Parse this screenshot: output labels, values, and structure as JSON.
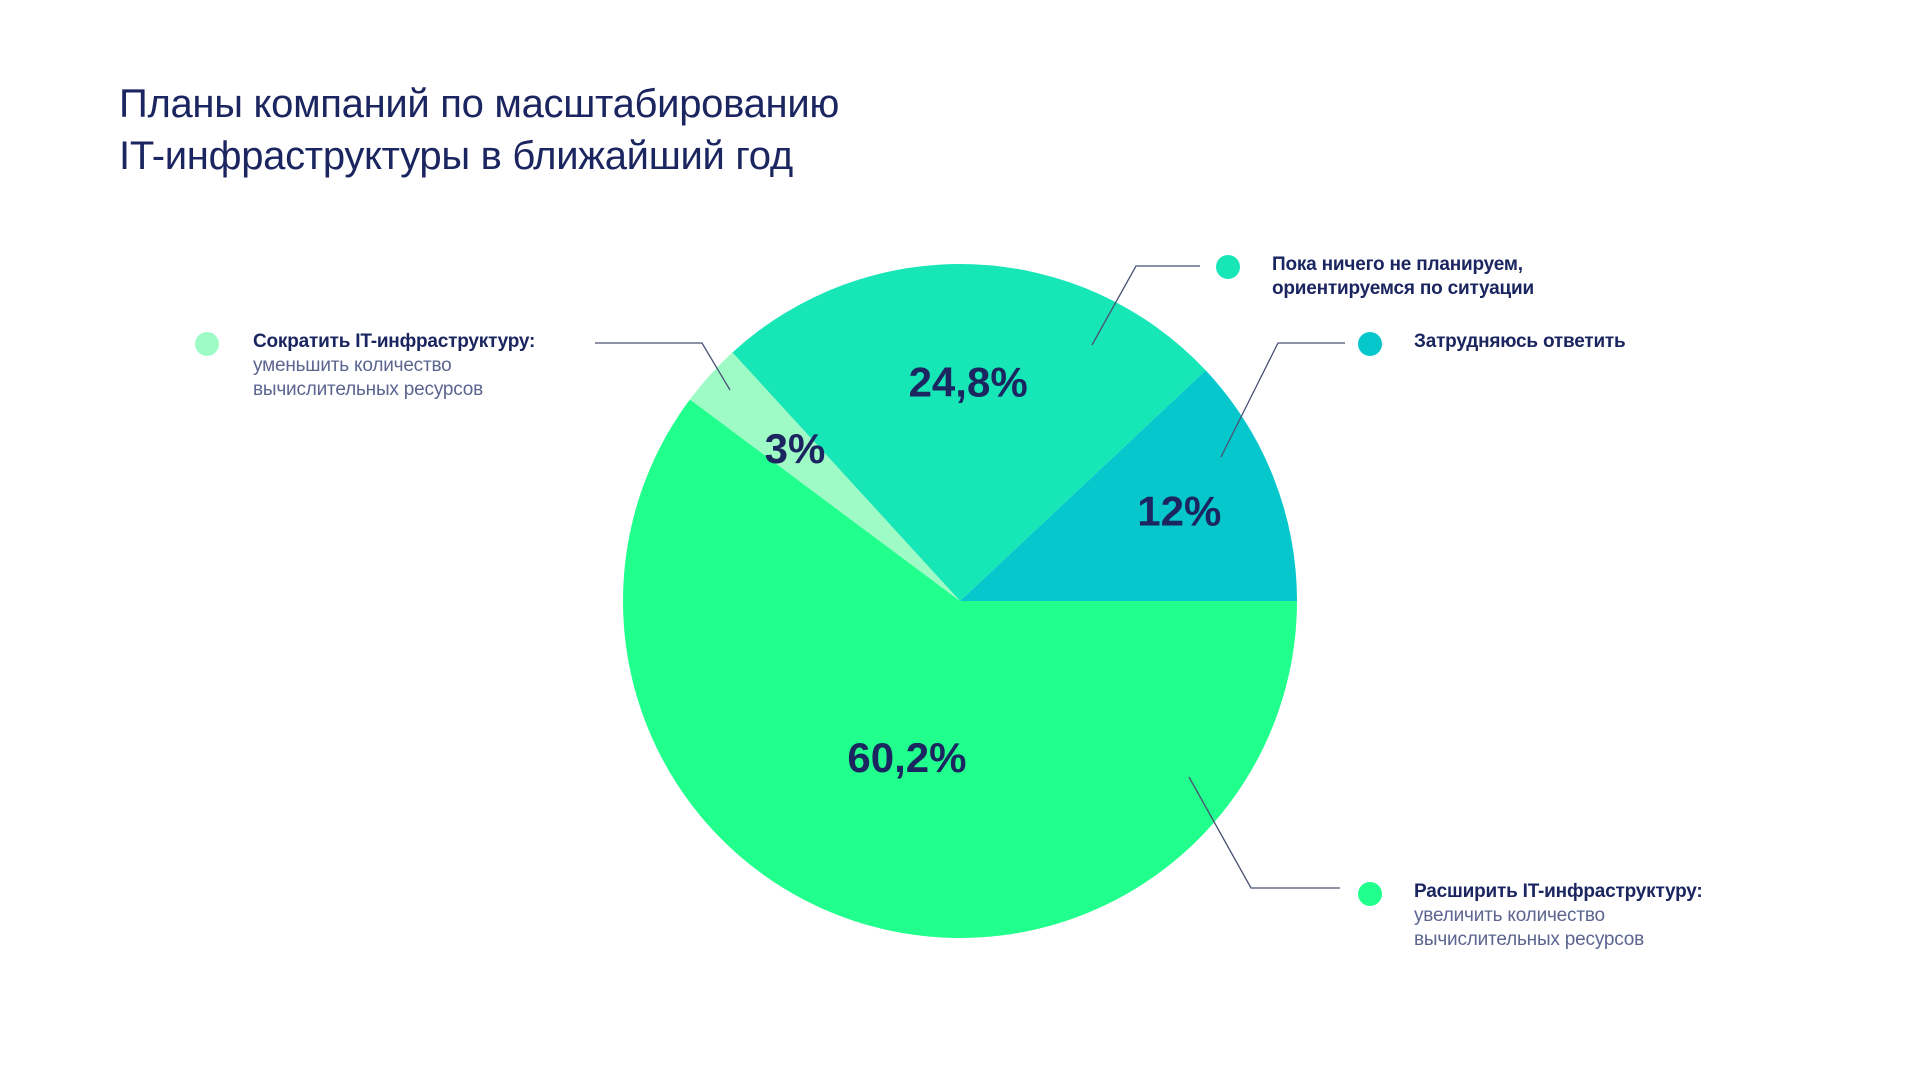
{
  "title": {
    "line1": "Планы компаний по масштабированию",
    "line2": "IT-инфраструктуры в ближайший год"
  },
  "colors": {
    "expand": "#21ff8c",
    "reduce": "#9ffbc6",
    "no_plans": "#17e6b6",
    "hard_to_answer": "#06c7cc",
    "text": "#1b2560",
    "subtext": "#5b6590",
    "leader": "#4a5275"
  },
  "chart_data": {
    "type": "pie",
    "slices": [
      {
        "key": "hard_to_answer",
        "value": 12.0,
        "label": "12%"
      },
      {
        "key": "no_plans",
        "value": 24.8,
        "label": "24,8%"
      },
      {
        "key": "reduce",
        "value": 3.0,
        "label": "3%"
      },
      {
        "key": "expand",
        "value": 60.2,
        "label": "60,2%"
      }
    ]
  },
  "legend": {
    "reduce": {
      "head": "Сократить IT-инфраструктуру:",
      "sub1": "уменьшить количество",
      "sub2": "вычислительных ресурсов"
    },
    "no_plans": {
      "head1": "Пока ничего не планируем,",
      "head2": "ориентируемся по ситуации"
    },
    "hard_to_answer": {
      "head": "Затрудняюсь ответить"
    },
    "expand": {
      "head": "Расширить IT-инфраструктуру:",
      "sub1": "увеличить количество",
      "sub2": "вычислительных ресурсов"
    }
  }
}
